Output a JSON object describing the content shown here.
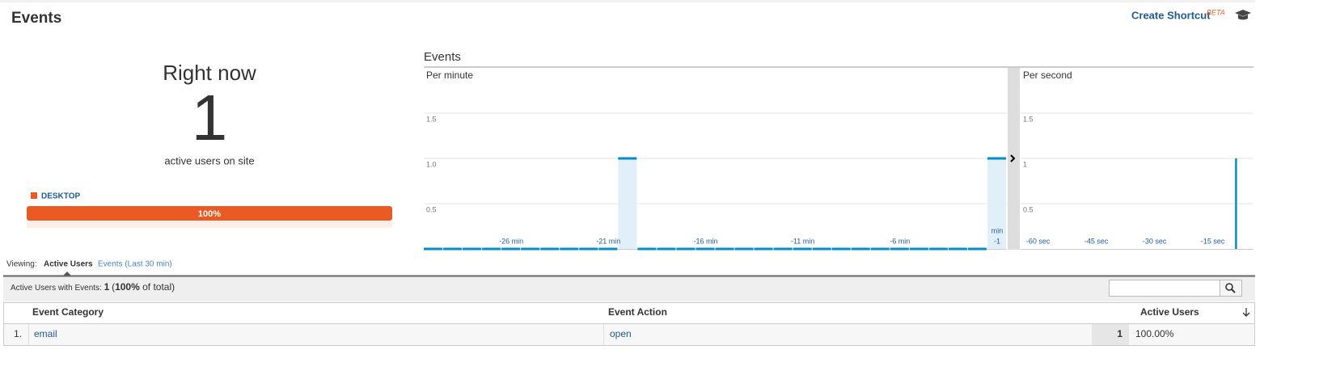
{
  "header": {
    "title": "Events",
    "shortcut": "Create Shortcut",
    "beta": "BETA"
  },
  "right_now": {
    "title": "Right now",
    "count": "1",
    "caption": "active users on site",
    "device": "DESKTOP",
    "device_share": "100%"
  },
  "events_chart": {
    "title": "Events",
    "per_minute": {
      "type": "bar",
      "title": "Per minute",
      "color": "#058dc7",
      "fill": "#e1f0f8",
      "categories": [
        null,
        null,
        null,
        null,
        "-26 min",
        null,
        null,
        null,
        null,
        "-21 min",
        null,
        null,
        null,
        null,
        "-16 min",
        null,
        null,
        null,
        null,
        "-11 min",
        null,
        null,
        null,
        null,
        "-6 min",
        null,
        null,
        null,
        null,
        "-1"
      ],
      "last_unit": "min",
      "values": [
        0,
        0,
        0,
        0,
        0,
        0,
        0,
        0,
        0,
        0,
        1,
        0,
        0,
        0,
        0,
        0,
        0,
        0,
        0,
        0,
        0,
        0,
        0,
        0,
        0,
        0,
        0,
        0,
        0,
        1
      ],
      "ylim": [
        0,
        2
      ],
      "yticks": [
        0.5,
        {
          "value": 1,
          "label": "1.0"
        },
        1.5
      ],
      "grid": true
    },
    "per_second": {
      "type": "bar",
      "title": "Per second",
      "color": "#058dc7",
      "categories": [
        null,
        null,
        null,
        null,
        "-60 sec",
        null,
        null,
        null,
        null,
        null,
        null,
        null,
        null,
        null,
        null,
        null,
        null,
        null,
        null,
        "-45 sec",
        null,
        null,
        null,
        null,
        null,
        null,
        null,
        null,
        null,
        null,
        null,
        null,
        null,
        null,
        "-30 sec",
        null,
        null,
        null,
        null,
        null,
        null,
        null,
        null,
        null,
        null,
        null,
        null,
        null,
        null,
        "-15 sec",
        null,
        null,
        null,
        null,
        null,
        null,
        null,
        null,
        null,
        null
      ],
      "values": [
        0,
        0,
        0,
        0,
        0,
        0,
        0,
        0,
        0,
        0,
        0,
        0,
        0,
        0,
        0,
        0,
        0,
        0,
        0,
        0,
        0,
        0,
        0,
        0,
        0,
        0,
        0,
        0,
        0,
        0,
        0,
        0,
        0,
        0,
        0,
        0,
        0,
        0,
        0,
        0,
        0,
        0,
        0,
        0,
        0,
        0,
        0,
        0,
        0,
        0,
        0,
        0,
        0,
        0,
        0,
        1,
        0,
        0,
        0,
        0
      ],
      "ylim": [
        0,
        2
      ],
      "yticks": [
        0.5,
        1,
        1.5
      ],
      "grid": true
    }
  },
  "viewing": {
    "label": "Viewing:",
    "tabs": [
      "Active Users",
      "Events (Last 30 min)"
    ]
  },
  "summary": {
    "label": "Active Users with Events:",
    "value": "1",
    "open": "(",
    "percent": "100%",
    "rest": " of total)"
  },
  "table": {
    "headers": [
      "Event Category",
      "Event Action",
      "Active Users"
    ],
    "rows": [
      [
        "1.",
        "email",
        "open",
        "1",
        "100.00%"
      ]
    ]
  }
}
